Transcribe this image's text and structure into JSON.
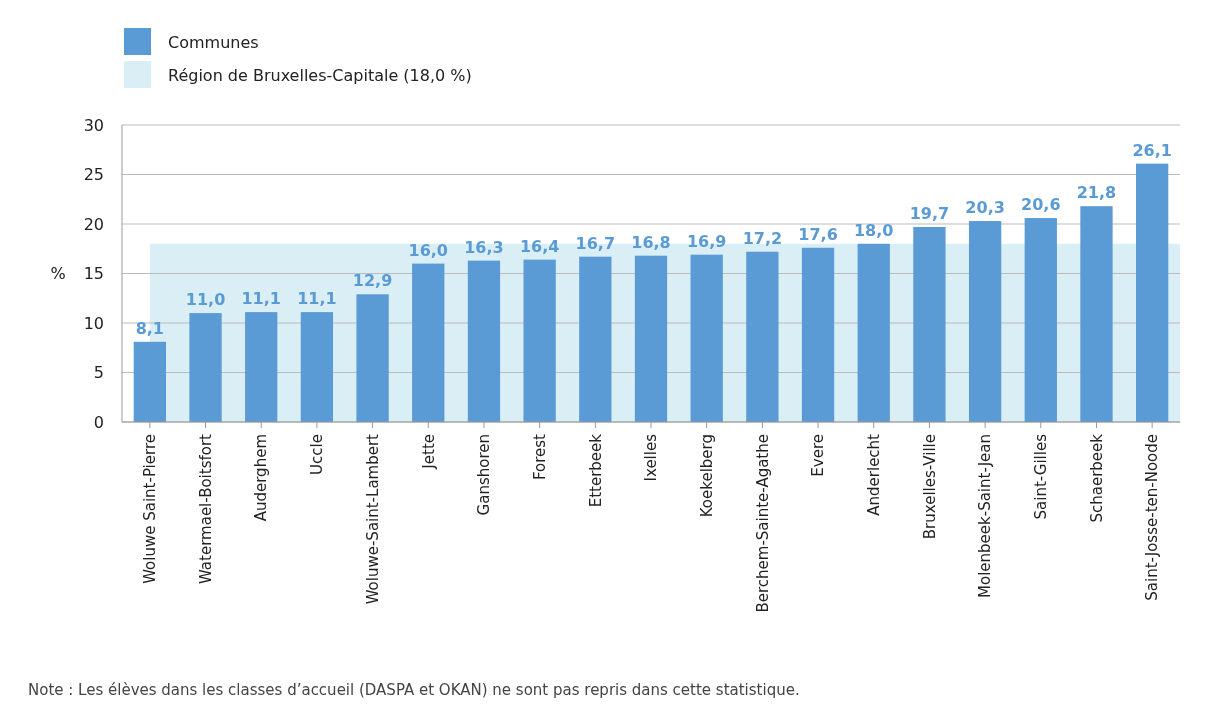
{
  "chart_data": {
    "type": "bar",
    "ylabel": "%",
    "categories": [
      "Woluwe Saint-Pierre",
      "Watermael-Boitsfort",
      "Auderghem",
      "Uccle",
      "Woluwe-Saint-Lambert",
      "Jette",
      "Ganshoren",
      "Forest",
      "Etterbeek",
      "Ixelles",
      "Koekelberg",
      "Berchem-Sainte-Agathe",
      "Evere",
      "Anderlecht",
      "Bruxelles-Ville",
      "Molenbeek-Saint-Jean",
      "Saint-Gilles",
      "Schaerbeek",
      "Saint-Josse-ten-Noode"
    ],
    "series": [
      {
        "name": "Communes",
        "color": "#5b9bd5",
        "values": [
          8.1,
          11.0,
          11.1,
          11.1,
          12.9,
          16.0,
          16.3,
          16.4,
          16.7,
          16.8,
          16.9,
          17.2,
          17.6,
          18.0,
          19.7,
          20.3,
          20.6,
          21.8,
          26.1
        ],
        "value_labels": [
          "8,1",
          "11,0",
          "11,1",
          "11,1",
          "12,9",
          "16,0",
          "16,3",
          "16,4",
          "16,7",
          "16,8",
          "16,9",
          "17,2",
          "17,6",
          "18,0",
          "19,7",
          "20,3",
          "20,6",
          "21,8",
          "26,1"
        ]
      }
    ],
    "bands": [
      {
        "axis": "y",
        "from": 0,
        "to": 18.0,
        "label": "Région de Bruxelles-Capitale (18,0 %)",
        "color": "#daeef6"
      }
    ],
    "ylim": [
      0,
      30
    ],
    "yticks": [
      0,
      5,
      10,
      15,
      20,
      25,
      30
    ],
    "grid": "y",
    "legend": "top left",
    "annotations": [
      "Note : Les élèves dans les classes d’accueil (DASPA et OKAN) ne sont pas repris dans cette statistique."
    ]
  }
}
